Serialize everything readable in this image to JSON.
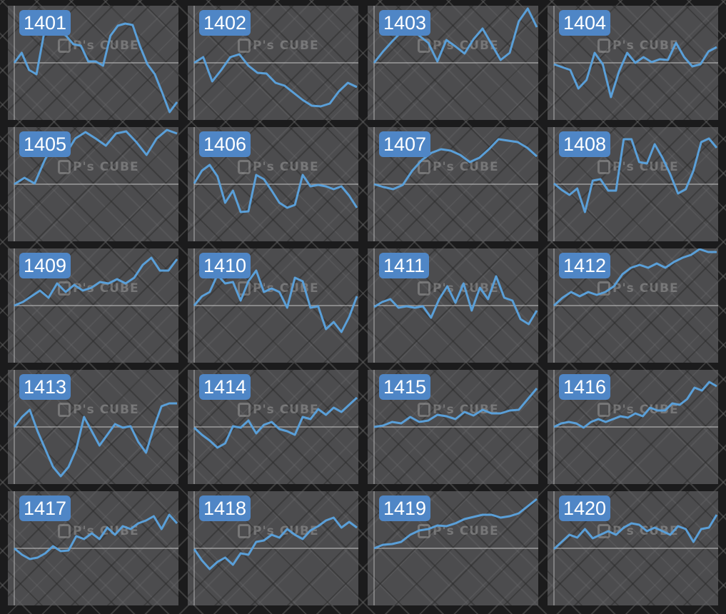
{
  "watermark": "P's CUBE",
  "line_color": "#5a9fd8",
  "badge_color": "#4f86c6",
  "chart_data": [
    {
      "type": "line",
      "title": "1401",
      "values": [
        0,
        14,
        -10,
        -16,
        40,
        46,
        44,
        38,
        26,
        24,
        2,
        2,
        -4,
        38,
        52,
        55,
        53,
        23,
        -2,
        -16,
        -42,
        -69,
        -55
      ]
    },
    {
      "type": "line",
      "title": "1402",
      "values": [
        0,
        8,
        -26,
        -10,
        8,
        12,
        -4,
        -14,
        -15,
        -28,
        -32,
        -42,
        -52,
        -60,
        -61,
        -57,
        -40,
        -28,
        -34
      ]
    },
    {
      "type": "line",
      "title": "1403",
      "values": [
        0,
        16,
        30,
        43,
        50,
        38,
        28,
        2,
        32,
        23,
        13,
        33,
        48,
        26,
        4,
        14,
        58,
        76,
        50
      ]
    },
    {
      "type": "line",
      "title": "1404",
      "values": [
        -2,
        -6,
        -10,
        -36,
        -24,
        14,
        -2,
        -48,
        -12,
        14,
        0,
        8,
        1,
        5,
        4,
        28,
        8,
        -5,
        -2,
        16,
        22
      ]
    },
    {
      "type": "line",
      "title": "1405",
      "values": [
        0,
        9,
        1,
        34,
        59,
        41,
        64,
        73,
        64,
        54,
        71,
        74,
        59,
        41,
        64,
        76,
        71
      ]
    },
    {
      "type": "line",
      "title": "1406",
      "values": [
        1,
        19,
        27,
        11,
        -26,
        -9,
        -39,
        -38,
        13,
        7,
        -9,
        -26,
        -33,
        -29,
        13,
        -3,
        -1,
        -3,
        -7,
        -3,
        -16,
        -33
      ]
    },
    {
      "type": "line",
      "title": "1407",
      "values": [
        0,
        -4,
        -7,
        -1,
        19,
        34,
        44,
        49,
        47,
        41,
        31,
        37,
        49,
        63,
        61,
        59,
        51,
        39
      ]
    },
    {
      "type": "line",
      "title": "1408",
      "values": [
        1,
        -8,
        -15,
        -6,
        -39,
        5,
        7,
        -9,
        -9,
        63,
        63,
        31,
        29,
        56,
        37,
        14,
        -13,
        -7,
        19,
        59,
        64,
        51
      ]
    },
    {
      "type": "line",
      "title": "1409",
      "values": [
        0,
        5,
        13,
        21,
        11,
        31,
        19,
        29,
        21,
        25,
        33,
        31,
        37,
        31,
        39,
        57,
        67,
        49,
        49,
        65
      ]
    },
    {
      "type": "line",
      "title": "1410",
      "values": [
        0,
        13,
        19,
        43,
        31,
        33,
        7,
        34,
        49,
        19,
        24,
        19,
        -3,
        39,
        34,
        -3,
        -1,
        -33,
        -23,
        -37,
        -16,
        13
      ]
    },
    {
      "type": "line",
      "title": "1411",
      "values": [
        -2,
        5,
        9,
        -3,
        -1,
        -3,
        -1,
        -17,
        9,
        27,
        4,
        31,
        -7,
        25,
        9,
        41,
        11,
        7,
        -19,
        -26,
        -7
      ]
    },
    {
      "type": "line",
      "title": "1412",
      "values": [
        0,
        11,
        19,
        13,
        19,
        15,
        19,
        27,
        44,
        53,
        57,
        53,
        59,
        53,
        61,
        67,
        71,
        79,
        75,
        75
      ]
    },
    {
      "type": "line",
      "title": "1413",
      "values": [
        0,
        14,
        24,
        -6,
        -31,
        -56,
        -69,
        -56,
        -31,
        14,
        -6,
        -26,
        -11,
        4,
        -1,
        1,
        -21,
        -36,
        -1,
        29,
        33,
        33
      ]
    },
    {
      "type": "line",
      "title": "1414",
      "values": [
        -1,
        -11,
        -19,
        -29,
        -23,
        1,
        -1,
        9,
        -9,
        3,
        7,
        -3,
        -6,
        -11,
        14,
        11,
        25,
        17,
        27,
        21,
        31,
        41
      ]
    },
    {
      "type": "line",
      "title": "1415",
      "values": [
        0,
        2,
        7,
        5,
        14,
        7,
        9,
        17,
        15,
        11,
        21,
        16,
        24,
        19,
        19,
        23,
        24,
        39,
        54
      ]
    },
    {
      "type": "line",
      "title": "1416",
      "values": [
        0,
        5,
        7,
        5,
        -1,
        7,
        11,
        7,
        11,
        15,
        13,
        19,
        15,
        27,
        23,
        23,
        33,
        31,
        39,
        55,
        51,
        63,
        57
      ]
    },
    {
      "type": "line",
      "title": "1417",
      "values": [
        0,
        -9,
        -15,
        -13,
        -7,
        3,
        -4,
        -3,
        17,
        13,
        21,
        13,
        29,
        19,
        31,
        27,
        35,
        39,
        45,
        27,
        47,
        35
      ]
    },
    {
      "type": "line",
      "title": "1418",
      "values": [
        -1,
        -17,
        -29,
        -19,
        -13,
        -23,
        -7,
        -9,
        9,
        11,
        19,
        15,
        27,
        19,
        13,
        25,
        31,
        39,
        43,
        29,
        37,
        29
      ]
    },
    {
      "type": "line",
      "title": "1419",
      "values": [
        0,
        5,
        6,
        9,
        19,
        25,
        27,
        32,
        31,
        35,
        41,
        44,
        47,
        47,
        43,
        45,
        49,
        59,
        69
      ]
    },
    {
      "type": "line",
      "title": "1420",
      "values": [
        -1,
        9,
        19,
        15,
        27,
        14,
        19,
        24,
        19,
        29,
        35,
        33,
        24,
        29,
        24,
        19,
        31,
        27,
        9,
        27,
        29,
        47
      ]
    }
  ]
}
